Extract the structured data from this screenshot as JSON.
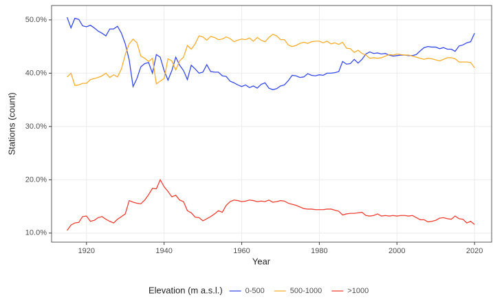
{
  "chart_data": {
    "type": "line",
    "xlabel": "Year",
    "ylabel": "Stations (count)",
    "legend_title": "Elevation (m a.s.l.)",
    "legend": "bottom",
    "grid": true,
    "x": [
      1915,
      1916,
      1917,
      1918,
      1919,
      1920,
      1921,
      1922,
      1923,
      1924,
      1925,
      1926,
      1927,
      1928,
      1929,
      1930,
      1931,
      1932,
      1933,
      1934,
      1935,
      1936,
      1937,
      1938,
      1939,
      1940,
      1941,
      1942,
      1943,
      1944,
      1945,
      1946,
      1947,
      1948,
      1949,
      1950,
      1951,
      1952,
      1953,
      1954,
      1955,
      1956,
      1957,
      1958,
      1959,
      1960,
      1961,
      1962,
      1963,
      1964,
      1965,
      1966,
      1967,
      1968,
      1969,
      1970,
      1971,
      1972,
      1973,
      1974,
      1975,
      1976,
      1977,
      1978,
      1979,
      1980,
      1981,
      1982,
      1983,
      1984,
      1985,
      1986,
      1987,
      1988,
      1989,
      1990,
      1991,
      1992,
      1993,
      1994,
      1995,
      1996,
      1997,
      1998,
      1999,
      2000,
      2001,
      2002,
      2003,
      2004,
      2005,
      2006,
      2007,
      2008,
      2009,
      2010,
      2011,
      2012,
      2013,
      2014,
      2015,
      2016,
      2017,
      2018,
      2019,
      2020
    ],
    "series": [
      {
        "name": "0-500",
        "color": "#3447e8",
        "values": [
          50.5,
          48.5,
          50.3,
          50.1,
          48.9,
          48.7,
          49.0,
          48.5,
          47.9,
          47.5,
          47.0,
          48.3,
          48.3,
          48.8,
          47.5,
          45.5,
          42.5,
          37.5,
          39.0,
          41.2,
          41.8,
          42.0,
          40.0,
          43.5,
          43.0,
          40.5,
          38.7,
          40.5,
          43.0,
          41.5,
          40.5,
          38.8,
          41.5,
          40.8,
          40.0,
          40.2,
          41.6,
          40.3,
          40.2,
          40.2,
          39.5,
          39.4,
          38.5,
          38.2,
          37.8,
          37.5,
          37.8,
          37.3,
          37.6,
          37.2,
          37.9,
          38.2,
          37.2,
          36.9,
          37.1,
          37.6,
          37.8,
          38.6,
          39.6,
          39.5,
          39.2,
          39.3,
          39.9,
          39.6,
          39.5,
          39.7,
          39.6,
          40.0,
          40.0,
          40.1,
          40.3,
          42.2,
          41.7,
          41.8,
          42.6,
          41.9,
          42.6,
          43.6,
          44.0,
          43.7,
          43.8,
          43.6,
          43.7,
          43.4,
          43.2,
          43.3,
          43.4,
          43.4,
          43.3,
          43.3,
          43.5,
          44.2,
          44.8,
          45.0,
          44.9,
          44.9,
          44.6,
          44.8,
          44.5,
          44.5,
          44.1,
          45.1,
          45.3,
          45.7,
          45.9,
          47.5
        ]
      },
      {
        "name": "500-1000",
        "color": "#f7ad2a",
        "values": [
          39.3,
          40.0,
          37.7,
          37.8,
          38.1,
          38.1,
          38.8,
          39.0,
          39.2,
          39.5,
          40.0,
          39.2,
          39.7,
          39.3,
          40.8,
          43.5,
          45.5,
          46.4,
          45.7,
          43.2,
          42.8,
          42.2,
          42.8,
          38.0,
          38.5,
          39.0,
          42.7,
          42.3,
          40.6,
          42.3,
          43.0,
          45.2,
          44.5,
          45.5,
          47.0,
          46.8,
          46.2,
          46.9,
          46.7,
          46.3,
          46.4,
          46.8,
          46.5,
          45.9,
          46.2,
          46.4,
          46.3,
          46.6,
          46.0,
          46.7,
          46.2,
          45.9,
          46.7,
          47.3,
          47.0,
          46.3,
          46.3,
          45.3,
          45.0,
          45.2,
          45.6,
          45.8,
          45.6,
          45.9,
          46.0,
          46.0,
          45.7,
          46.0,
          45.5,
          45.7,
          45.4,
          45.8,
          44.7,
          44.6,
          43.9,
          44.3,
          43.7,
          43.4,
          42.8,
          42.9,
          42.8,
          42.9,
          43.2,
          43.5,
          43.4,
          43.6,
          43.5,
          43.4,
          43.4,
          43.2,
          43.0,
          42.8,
          42.6,
          42.8,
          42.7,
          42.5,
          42.3,
          42.6,
          42.9,
          42.9,
          42.7,
          42.1,
          42.1,
          42.1,
          42.0,
          41.0
        ]
      },
      {
        "name": ">1000",
        "color": "#ee3d31",
        "values": [
          10.5,
          11.5,
          11.9,
          12.0,
          13.1,
          13.2,
          12.2,
          12.4,
          12.9,
          13.1,
          12.6,
          12.2,
          11.9,
          12.6,
          13.1,
          13.6,
          16.1,
          15.8,
          15.6,
          15.5,
          16.2,
          17.2,
          18.4,
          18.3,
          20.0,
          18.7,
          17.8,
          16.8,
          17.1,
          16.2,
          15.9,
          14.2,
          13.8,
          13.0,
          12.9,
          12.3,
          12.7,
          13.1,
          13.6,
          14.2,
          13.9,
          15.2,
          15.9,
          16.2,
          16.1,
          15.9,
          16.0,
          16.2,
          16.1,
          15.9,
          16.0,
          15.9,
          16.2,
          15.8,
          15.9,
          16.1,
          16.0,
          15.6,
          15.4,
          15.2,
          14.9,
          14.6,
          14.5,
          14.5,
          14.4,
          14.4,
          14.4,
          14.5,
          14.5,
          14.3,
          14.1,
          13.4,
          13.6,
          13.7,
          13.7,
          13.8,
          13.9,
          13.3,
          13.2,
          13.3,
          13.6,
          13.2,
          13.3,
          13.2,
          13.3,
          13.2,
          13.3,
          13.3,
          13.2,
          13.3,
          12.9,
          12.5,
          12.5,
          12.1,
          12.2,
          12.4,
          12.8,
          12.9,
          12.7,
          12.6,
          13.2,
          12.7,
          12.6,
          11.9,
          12.2,
          11.6
        ]
      }
    ],
    "xlim": [
      1911,
      2024.4
    ],
    "xticks": [
      1920,
      1940,
      1960,
      1980,
      2000,
      2020
    ],
    "ylim": [
      8.3,
      52.7
    ],
    "yticks": [
      {
        "value": 10,
        "label": "10.0%"
      },
      {
        "value": 20,
        "label": "20.0%"
      },
      {
        "value": 30,
        "label": "30.0%"
      },
      {
        "value": 40,
        "label": "40.0%"
      },
      {
        "value": 50,
        "label": "50.0%"
      }
    ]
  }
}
